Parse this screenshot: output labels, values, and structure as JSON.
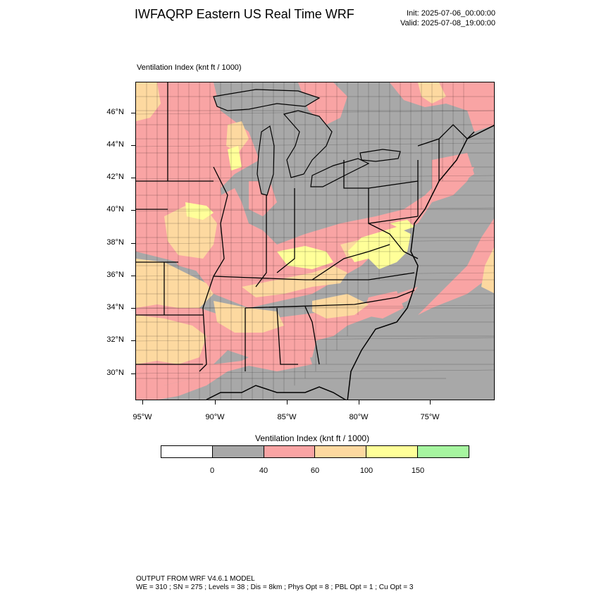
{
  "title": "IWFAQRP Eastern US Real Time WRF",
  "init": "Init: 2025-07-06_00:00:00",
  "valid": "Valid: 2025-07-08_19:00:00",
  "field_label": "Ventilation Index   (knt ft / 1000)",
  "colorbar": {
    "title": "Ventilation Index  (knt ft / 1000)",
    "colors": [
      "#ffffff",
      "#a8a8a8",
      "#f9a4a4",
      "#fdd9a0",
      "#ffff99",
      "#a6f5a0"
    ],
    "ticks": [
      "0",
      "40",
      "60",
      "100",
      "150"
    ]
  },
  "latitude_labels": [
    "46°N",
    "44°N",
    "42°N",
    "40°N",
    "38°N",
    "36°N",
    "34°N",
    "32°N",
    "30°N"
  ],
  "longitude_labels": [
    "95°W",
    "90°W",
    "85°W",
    "80°W",
    "75°W"
  ],
  "footer": {
    "line1": "OUTPUT FROM WRF V4.6.1 MODEL",
    "line2": "WE = 310 ; SN = 275 ; Levels = 38 ; Dis = 8km ; Phys Opt = 8 ; PBL Opt = 1 ; Cu Opt = 3"
  },
  "map_colors": {
    "ocean": "#a8a8a8",
    "low": "#f9a4a4",
    "mid": "#fdd9a0",
    "high": "#ffff99"
  }
}
